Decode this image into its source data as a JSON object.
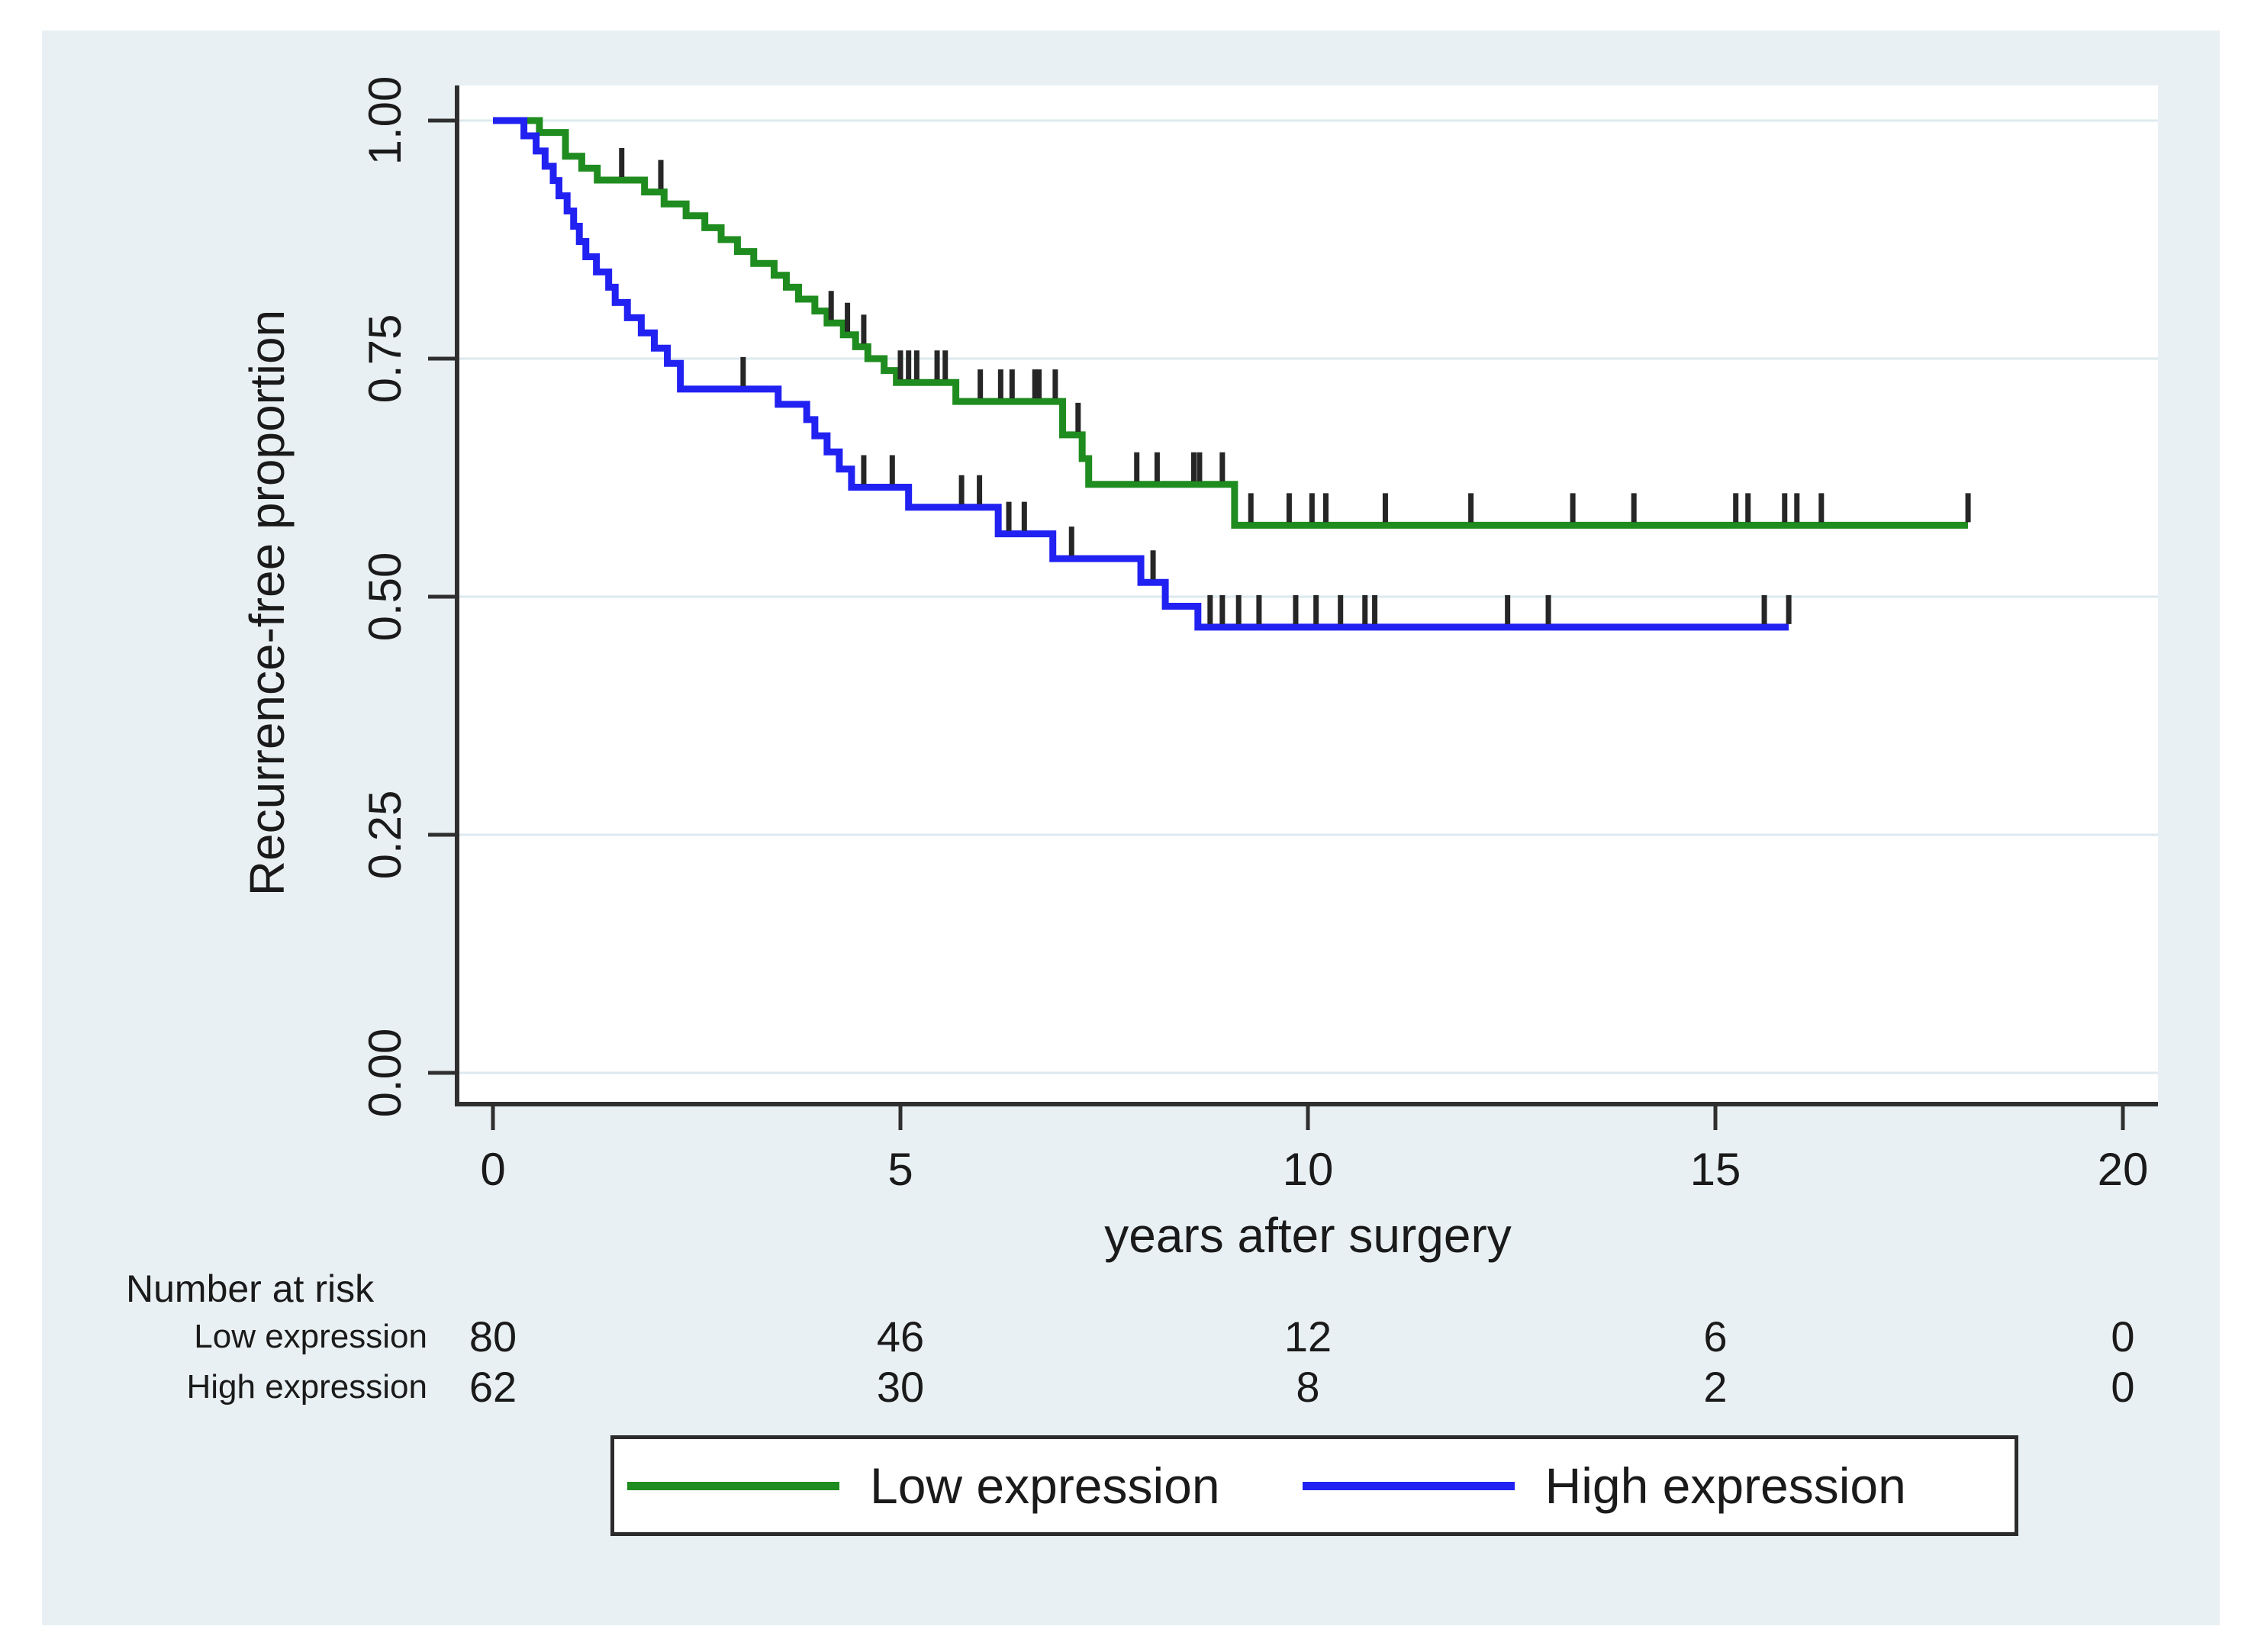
{
  "chart_data": {
    "type": "line",
    "subtype": "kaplan_meier_step",
    "title": "",
    "xlabel": "years after surgery",
    "ylabel": "Recurrence-free proportion",
    "xlim": [
      0,
      20
    ],
    "ylim": [
      0.0,
      1.0
    ],
    "xticks": [
      "0",
      "5",
      "10",
      "15",
      "20"
    ],
    "yticks": [
      "1.00",
      "0.75",
      "0.50",
      "0.25",
      "0.00"
    ],
    "grid": "horizontal",
    "legend_position": "bottom-center-boxed",
    "colors": {
      "canvas_bg": "#e9f0f3",
      "plot_bg": "#ffffff",
      "gridline": "#dde9ee",
      "axis": "#2f2f2f",
      "censor_tick": "#262626",
      "text": "#1a1a1a"
    },
    "series": [
      {
        "name": "Low expression",
        "color": "#1f8c1f",
        "start": [
          0,
          1.0
        ],
        "steps": [
          [
            0.57,
            0.9875
          ],
          [
            0.89,
            0.9625
          ],
          [
            1.09,
            0.95
          ],
          [
            1.28,
            0.9375
          ],
          [
            1.86,
            0.925
          ],
          [
            2.1,
            0.9125
          ],
          [
            2.37,
            0.9
          ],
          [
            2.6,
            0.8875
          ],
          [
            2.8,
            0.875
          ],
          [
            3.0,
            0.8625
          ],
          [
            3.2,
            0.85
          ],
          [
            3.45,
            0.8375
          ],
          [
            3.6,
            0.825
          ],
          [
            3.75,
            0.8125
          ],
          [
            3.95,
            0.8
          ],
          [
            4.1,
            0.7875
          ],
          [
            4.3,
            0.775
          ],
          [
            4.45,
            0.7625
          ],
          [
            4.6,
            0.75
          ],
          [
            4.8,
            0.7375
          ],
          [
            4.95,
            0.725
          ],
          [
            5.68,
            0.705
          ],
          [
            6.99,
            0.67
          ],
          [
            7.23,
            0.645
          ],
          [
            7.31,
            0.618
          ],
          [
            9.1,
            0.575
          ]
        ],
        "end_time": 18.1,
        "censor_times": [
          1.58,
          2.06,
          4.15,
          4.35,
          4.55,
          5.0,
          5.1,
          5.2,
          5.45,
          5.55,
          5.98,
          6.23,
          6.37,
          6.65,
          6.7,
          6.9,
          7.18,
          7.9,
          8.15,
          8.6,
          8.67,
          8.95,
          9.3,
          9.77,
          10.05,
          10.22,
          10.95,
          12.0,
          13.25,
          14.0,
          15.25,
          15.4,
          15.85,
          16.0,
          16.3,
          18.1
        ]
      },
      {
        "name": "High expression",
        "color": "#2121f2",
        "start": [
          0,
          1.0
        ],
        "steps": [
          [
            0.38,
            0.984
          ],
          [
            0.53,
            0.968
          ],
          [
            0.64,
            0.952
          ],
          [
            0.74,
            0.937
          ],
          [
            0.81,
            0.921
          ],
          [
            0.91,
            0.905
          ],
          [
            0.99,
            0.889
          ],
          [
            1.06,
            0.873
          ],
          [
            1.14,
            0.857
          ],
          [
            1.27,
            0.841
          ],
          [
            1.42,
            0.825
          ],
          [
            1.5,
            0.809
          ],
          [
            1.65,
            0.793
          ],
          [
            1.82,
            0.777
          ],
          [
            1.98,
            0.761
          ],
          [
            2.14,
            0.745
          ],
          [
            2.3,
            0.718
          ],
          [
            3.5,
            0.702
          ],
          [
            3.85,
            0.686
          ],
          [
            3.95,
            0.669
          ],
          [
            4.1,
            0.652
          ],
          [
            4.25,
            0.634
          ],
          [
            4.4,
            0.615
          ],
          [
            5.1,
            0.594
          ],
          [
            6.2,
            0.566
          ],
          [
            6.87,
            0.54
          ],
          [
            7.95,
            0.515
          ],
          [
            8.25,
            0.49
          ],
          [
            8.65,
            0.468
          ]
        ],
        "end_time": 15.9,
        "censor_times": [
          3.07,
          4.55,
          4.9,
          5.75,
          5.97,
          6.33,
          6.52,
          7.1,
          8.1,
          8.8,
          8.95,
          9.15,
          9.4,
          9.85,
          10.1,
          10.4,
          10.7,
          10.82,
          12.45,
          12.95,
          15.6,
          15.9
        ]
      }
    ],
    "number_at_risk": {
      "title": "Number at risk",
      "times": [
        "0",
        "5",
        "10",
        "15",
        "20"
      ],
      "rows": [
        {
          "label": "Low expression",
          "values": [
            80,
            46,
            12,
            6,
            0
          ]
        },
        {
          "label": "High expression",
          "values": [
            62,
            30,
            8,
            2,
            0
          ]
        }
      ]
    },
    "legend": [
      {
        "label": "Low expression",
        "color": "#1f8c1f"
      },
      {
        "label": "High expression",
        "color": "#2121f2"
      }
    ]
  }
}
